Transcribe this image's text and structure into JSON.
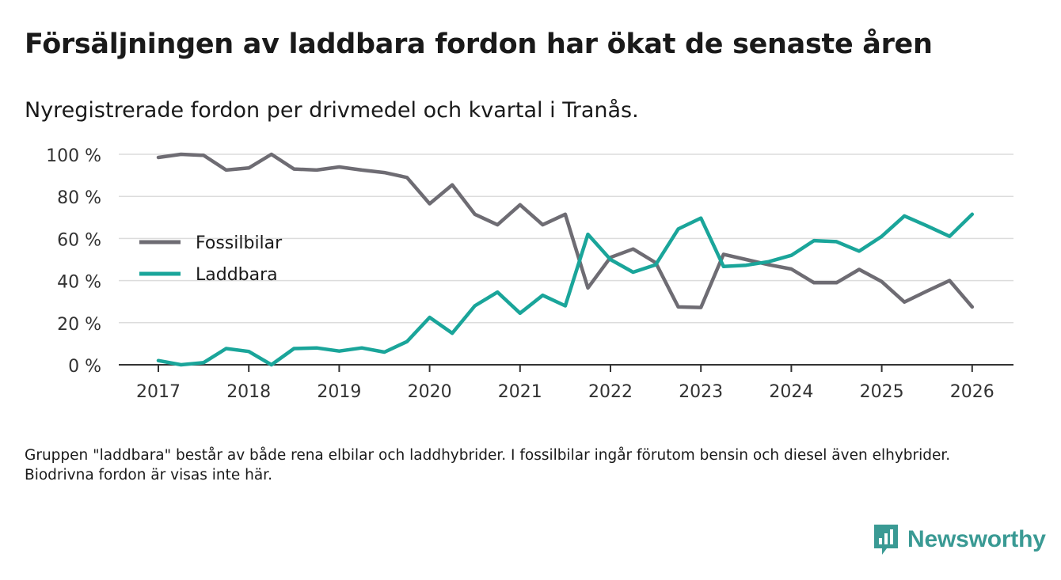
{
  "title": "Försäljningen av laddbara fordon har ökat de senaste åren",
  "subtitle": "Nyregistrerade fordon per drivmedel och kvartal i Tranås.",
  "footnote": "Gruppen \"laddbara\" består av både rena elbilar och laddhybrider. I fossilbilar ingår förutom bensin och diesel även elhybrider. Biodrivna fordon är visas inte här.",
  "brand": {
    "name": "Newsworthy",
    "icon": "newsworthy-logo-icon",
    "color": "#3a9a94"
  },
  "chart_data": {
    "type": "line",
    "title": "Försäljningen av laddbara fordon har ökat de senaste åren",
    "xlabel": "",
    "ylabel": "",
    "ylim": [
      0,
      100
    ],
    "yticks": [
      0,
      20,
      40,
      60,
      80,
      100
    ],
    "ytick_labels": [
      "0 %",
      "20 %",
      "40 %",
      "60 %",
      "80 %",
      "100 %"
    ],
    "xlim": [
      2016.75,
      2026.25
    ],
    "xticks": [
      2017,
      2018,
      2019,
      2020,
      2021,
      2022,
      2023,
      2024,
      2025,
      2026
    ],
    "xtick_labels": [
      "2017",
      "2018",
      "2019",
      "2020",
      "2021",
      "2022",
      "2023",
      "2024",
      "2025",
      "2026"
    ],
    "grid": true,
    "legend_position": "left-middle",
    "x": [
      2017,
      2017.25,
      2017.5,
      2017.75,
      2018,
      2018.25,
      2018.5,
      2018.75,
      2019,
      2019.25,
      2019.5,
      2019.75,
      2020,
      2020.25,
      2020.5,
      2020.75,
      2021,
      2021.25,
      2021.5,
      2021.75,
      2022,
      2022.25,
      2022.5,
      2022.75,
      2023,
      2023.25,
      2023.5,
      2023.75,
      2024,
      2024.25,
      2024.5,
      2024.75,
      2025,
      2025.25,
      2025.5,
      2025.75,
      2026
    ],
    "series": [
      {
        "name": "Fossilbilar",
        "color": "#6e6c73",
        "values": [
          98.5,
          100,
          99.5,
          92.5,
          93.5,
          100,
          93,
          92.5,
          94,
          92.5,
          91.3,
          89,
          76.5,
          85.5,
          71.5,
          66.5,
          76,
          66.5,
          71.5,
          36.5,
          51,
          55,
          48.5,
          27.5,
          27.2,
          52.5,
          50,
          47.5,
          45.5,
          39,
          39,
          45.3,
          39.5,
          29.8,
          35,
          40,
          27.5
        ]
      },
      {
        "name": "Laddbara",
        "color": "#1aa59a",
        "values": [
          2,
          0,
          1,
          7.7,
          6.3,
          0,
          7.7,
          8,
          6.5,
          8,
          6,
          11,
          22.5,
          15,
          28,
          34.5,
          24.5,
          33,
          28,
          62,
          50,
          44,
          47.5,
          64.5,
          69.7,
          46.7,
          47.3,
          49,
          52,
          59,
          58.5,
          54,
          61,
          70.7,
          66,
          61,
          71.5
        ]
      }
    ]
  }
}
